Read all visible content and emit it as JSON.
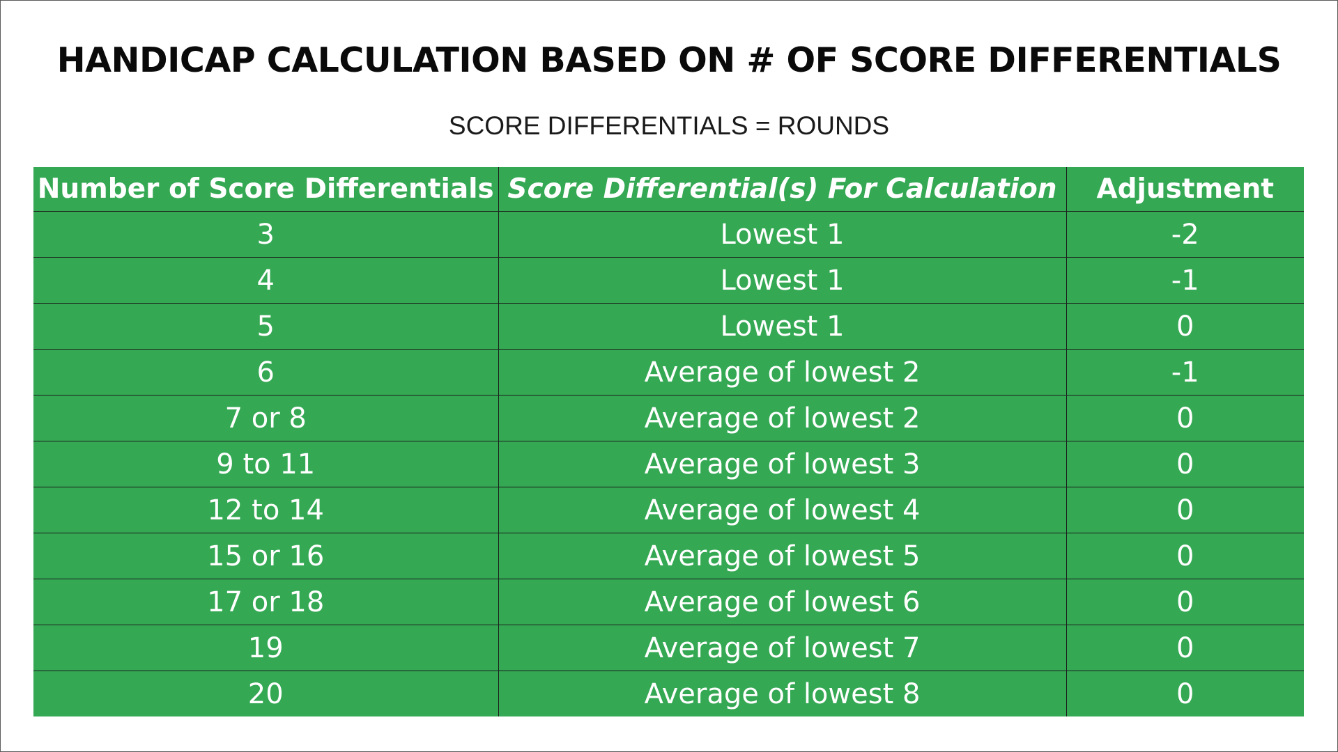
{
  "title": "HANDICAP CALCULATION BASED ON # OF SCORE DIFFERENTIALS",
  "subtitle": "SCORE DIFFERENTIALS = ROUNDS",
  "colors": {
    "table_background": "#34a853",
    "table_text": "#ffffff",
    "grid_lines": "#1b1b1b",
    "title_text": "#0a0a0a"
  },
  "table": {
    "headers": [
      "Number of Score Differentials",
      "Score Differential(s) For Calculation",
      "Adjustment"
    ],
    "rows": [
      [
        "3",
        "Lowest 1",
        "-2"
      ],
      [
        "4",
        "Lowest 1",
        "-1"
      ],
      [
        "5",
        "Lowest 1",
        "0"
      ],
      [
        "6",
        "Average of lowest 2",
        "-1"
      ],
      [
        "7 or 8",
        "Average of lowest 2",
        "0"
      ],
      [
        "9 to 11",
        "Average of lowest 3",
        "0"
      ],
      [
        "12 to 14",
        "Average of lowest 4",
        "0"
      ],
      [
        "15 or 16",
        "Average of lowest 5",
        "0"
      ],
      [
        "17 or 18",
        "Average of lowest 6",
        "0"
      ],
      [
        "19",
        "Average of lowest 7",
        "0"
      ],
      [
        "20",
        "Average of lowest 8",
        "0"
      ]
    ]
  }
}
